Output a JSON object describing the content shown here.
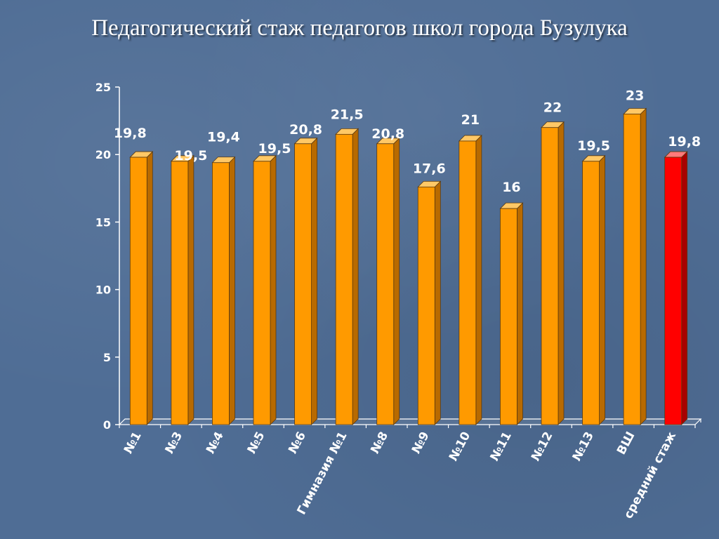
{
  "slide": {
    "title": "Педагогический стаж педагогов школ города Бузулука"
  },
  "colors": {
    "bar": "#ff9a00",
    "bar_side": "#b86a00",
    "bar_top": "#ffc866",
    "average_bar": "#ff0000",
    "average_side": "#a80000",
    "average_top": "#ff7a7a",
    "background": "#4f6d95",
    "axis": "#ffffff"
  },
  "chart_data": {
    "type": "bar",
    "title": "",
    "xlabel": "",
    "ylabel": "",
    "ylim": [
      0,
      25
    ],
    "yticks": [
      "0",
      "5",
      "10",
      "15",
      "20",
      "25"
    ],
    "grid": false,
    "legend": "none",
    "categories": [
      "№1",
      "№3",
      "№4",
      "№5",
      "№6",
      "Гимназия №1",
      "№8",
      "№9",
      "№10",
      "№11",
      "№12",
      "№13",
      "ВШ",
      "средний стаж"
    ],
    "values": [
      19.8,
      19.5,
      19.4,
      19.5,
      20.8,
      21.5,
      20.8,
      17.6,
      21,
      16,
      22,
      19.5,
      23,
      19.8
    ],
    "value_labels": [
      "19,8",
      "19,5",
      "19,4",
      "19,5",
      "20,8",
      "21,5",
      "20,8",
      "17,6",
      "21",
      "16",
      "22",
      "19,5",
      "23",
      "19,8"
    ],
    "highlighted_category": "средний стаж"
  }
}
